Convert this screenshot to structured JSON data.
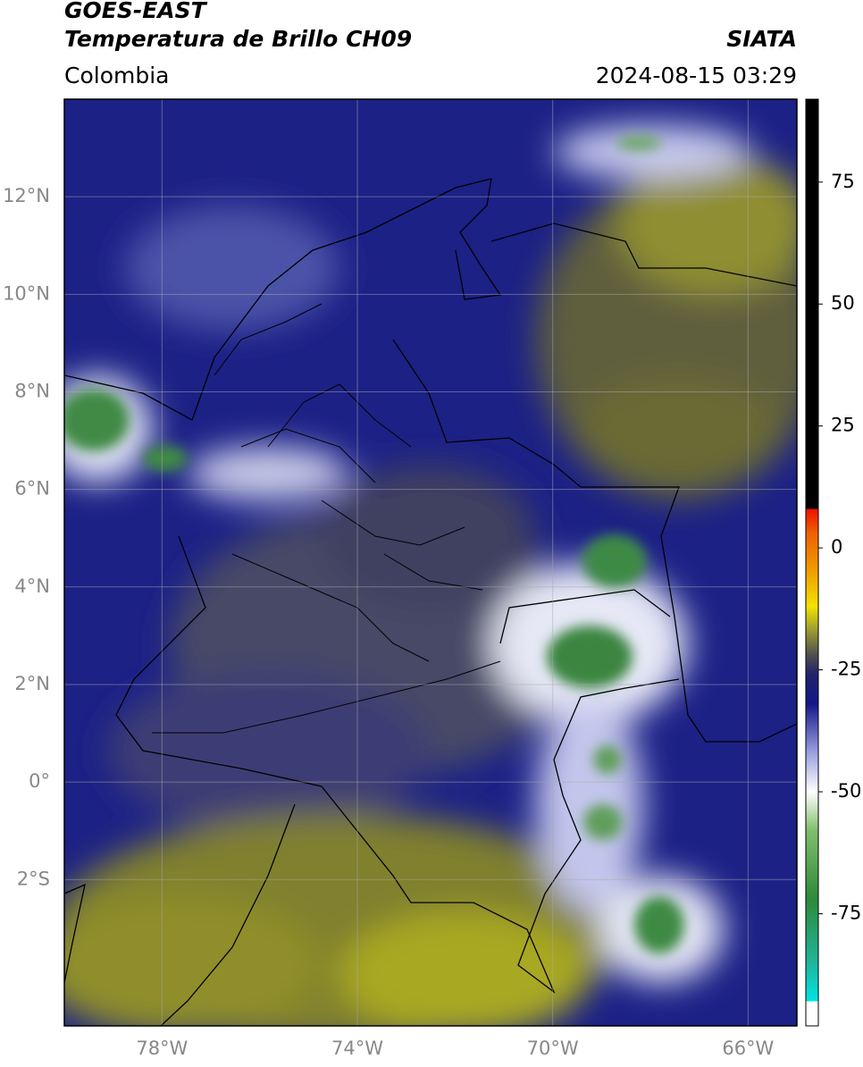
{
  "header": {
    "title": "GOES-EAST",
    "subtitle": "Temperatura de Brillo CH09",
    "source": "SIATA",
    "region": "Colombia",
    "datetime": "2024-08-15 03:29"
  },
  "map": {
    "xlim": [
      -80,
      -65
    ],
    "ylim": [
      -5,
      14
    ],
    "xticks": [
      {
        "value": -78,
        "label": "78°W"
      },
      {
        "value": -74,
        "label": "74°W"
      },
      {
        "value": -70,
        "label": "70°W"
      },
      {
        "value": -66,
        "label": "66°W"
      }
    ],
    "yticks": [
      {
        "value": 12,
        "label": "12°N"
      },
      {
        "value": 10,
        "label": "10°N"
      },
      {
        "value": 8,
        "label": "8°N"
      },
      {
        "value": 6,
        "label": "6°N"
      },
      {
        "value": 4,
        "label": "4°N"
      },
      {
        "value": 2,
        "label": "2°N"
      },
      {
        "value": 0,
        "label": "0°"
      },
      {
        "value": -2,
        "label": "2°S"
      }
    ],
    "grid": true
  },
  "colorbar": {
    "lim": [
      -98,
      92
    ],
    "ticks": [
      75,
      50,
      25,
      0,
      -25,
      -50,
      -75
    ],
    "stops": [
      {
        "value": -98,
        "color": "#ffffff"
      },
      {
        "value": -93,
        "color": "#ffffff"
      },
      {
        "value": -93,
        "color": "#00e5e5"
      },
      {
        "value": -85,
        "color": "#1fb59a"
      },
      {
        "value": -72,
        "color": "#2e8a3a"
      },
      {
        "value": -58,
        "color": "#7fbf6a"
      },
      {
        "value": -50,
        "color": "#ffffff"
      },
      {
        "value": -42,
        "color": "#9aa0e0"
      },
      {
        "value": -32,
        "color": "#15178a"
      },
      {
        "value": -26,
        "color": "#20236b"
      },
      {
        "value": -22,
        "color": "#4e4f4f"
      },
      {
        "value": -16,
        "color": "#aaa92a"
      },
      {
        "value": -12,
        "color": "#f2e200"
      },
      {
        "value": -5,
        "color": "#f0a000"
      },
      {
        "value": 3,
        "color": "#f06000"
      },
      {
        "value": 8,
        "color": "#f01000"
      },
      {
        "value": 8,
        "color": "#000000"
      },
      {
        "value": 92,
        "color": "#000000"
      }
    ]
  }
}
